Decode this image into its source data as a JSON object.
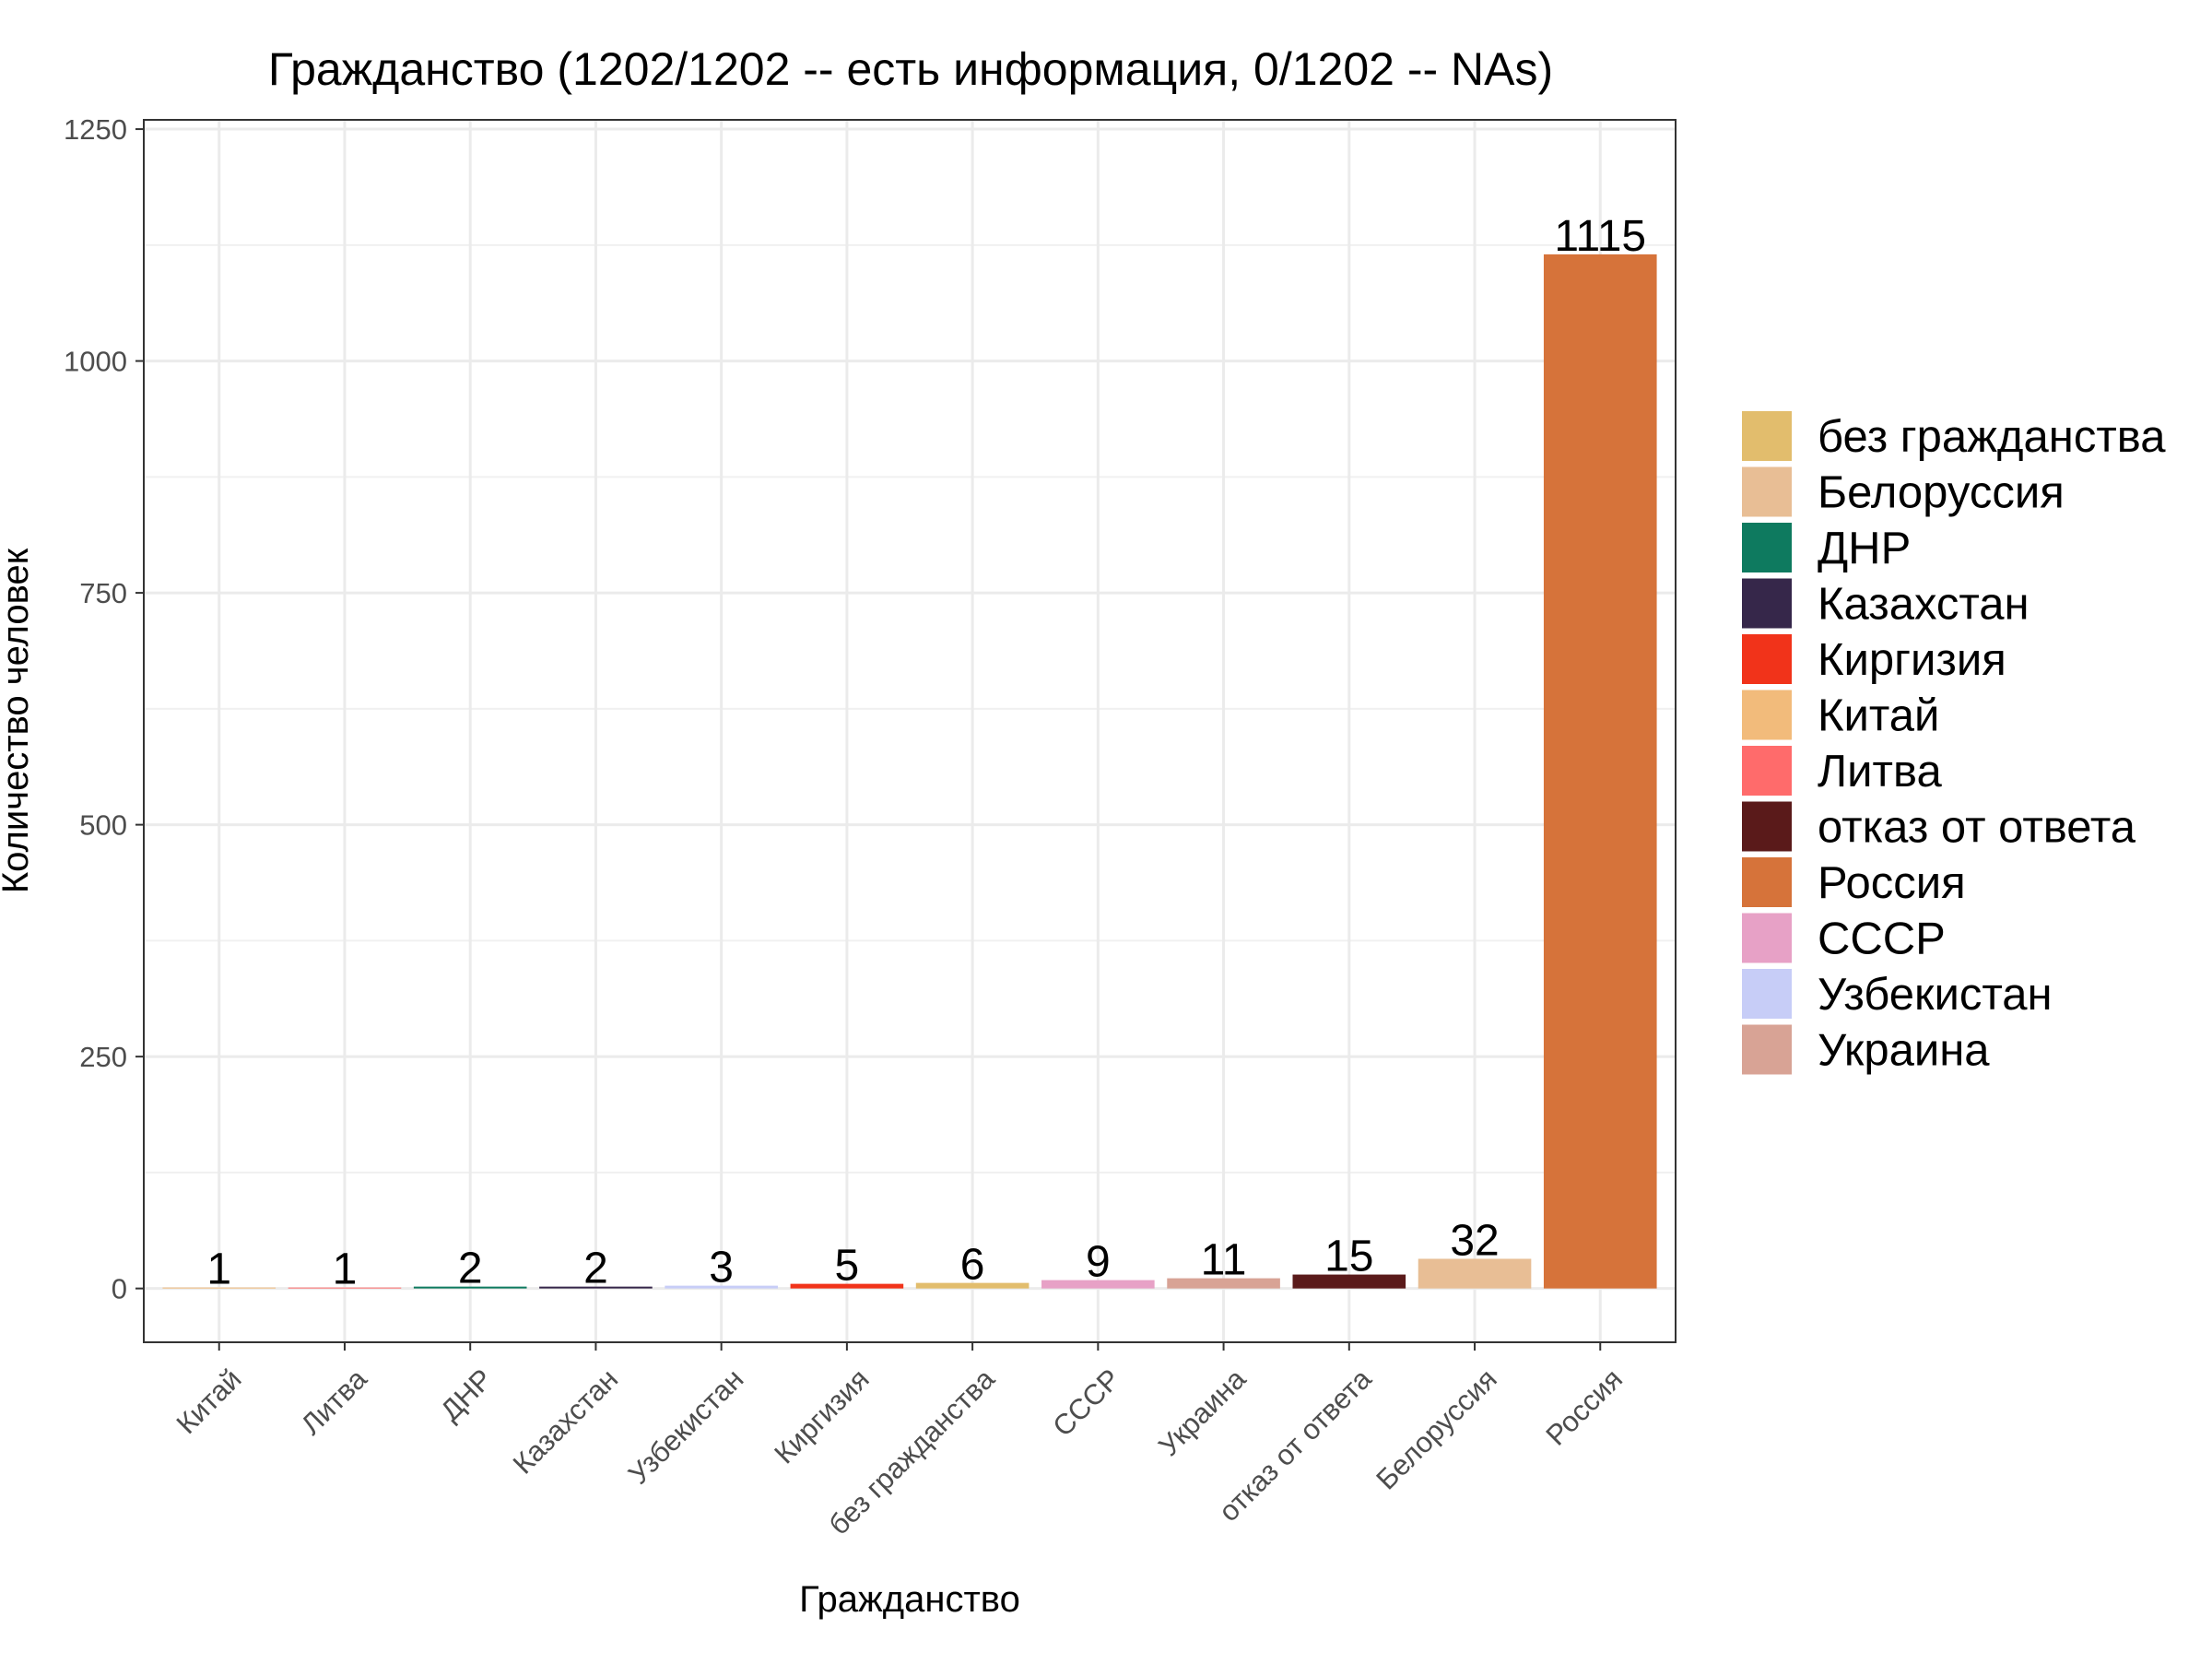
{
  "chart_data": {
    "type": "bar",
    "title": "Гражданство (1202/1202 -- есть информация, 0/1202 -- NAs)",
    "xlabel": "Гражданство",
    "ylabel": "Количество человек",
    "categories": [
      "Китай",
      "Литва",
      "ДНР",
      "Казахстан",
      "Узбекистан",
      "Киргизия",
      "без гражданства",
      "СССР",
      "Украина",
      "отказ от ответа",
      "Белоруссия",
      "Россия"
    ],
    "values": [
      1,
      1,
      2,
      2,
      3,
      5,
      6,
      9,
      11,
      15,
      32,
      1115
    ],
    "data_labels": [
      "1",
      "1",
      "2",
      "2",
      "3",
      "5",
      "6",
      "9",
      "11",
      "15",
      "32",
      "1115"
    ],
    "colors": [
      "#f2bb7b",
      "#ff6b6b",
      "#0e7a5f",
      "#36274a",
      "#c7cdf7",
      "#f1331a",
      "#e2bd6d",
      "#e7a1c6",
      "#d8a395",
      "#5a1a1a",
      "#e8be95",
      "#d6733a"
    ],
    "ylim": [
      -58,
      1260
    ],
    "yticks": [
      0,
      250,
      500,
      750,
      1000,
      1250
    ],
    "ytick_labels": [
      "0",
      "250",
      "500",
      "750",
      "1000",
      "1250"
    ],
    "grid": true,
    "legend_position": "right",
    "legend": [
      {
        "label": "без гражданства",
        "color": "#e2bd6d"
      },
      {
        "label": "Белоруссия",
        "color": "#e8be95"
      },
      {
        "label": "ДНР",
        "color": "#0e7a5f"
      },
      {
        "label": "Казахстан",
        "color": "#36274a"
      },
      {
        "label": "Киргизия",
        "color": "#f1331a"
      },
      {
        "label": "Китай",
        "color": "#f2bb7b"
      },
      {
        "label": "Литва",
        "color": "#ff6b6b"
      },
      {
        "label": "отказ от ответа",
        "color": "#5a1a1a"
      },
      {
        "label": "Россия",
        "color": "#d6733a"
      },
      {
        "label": "СССР",
        "color": "#e7a1c6"
      },
      {
        "label": "Узбекистан",
        "color": "#c7cdf7"
      },
      {
        "label": "Украина",
        "color": "#d8a395"
      }
    ]
  }
}
